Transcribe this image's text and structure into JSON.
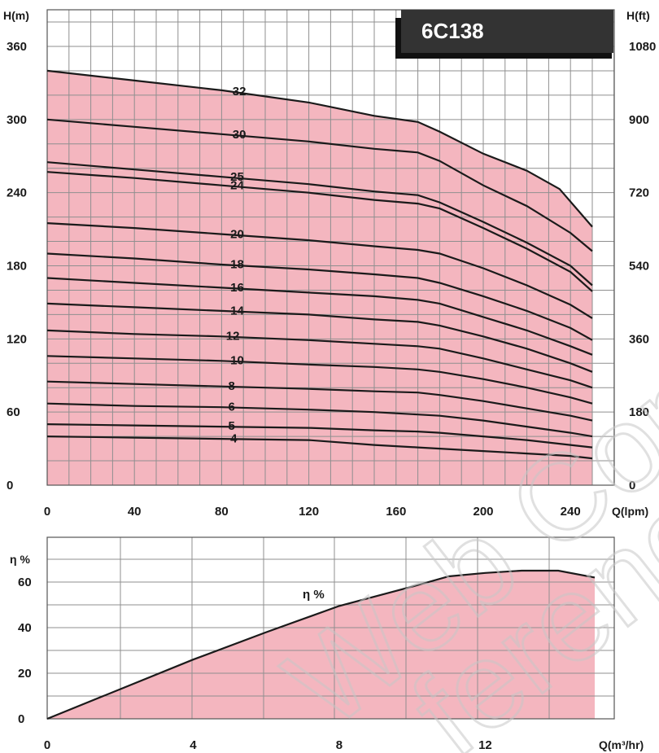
{
  "model": "6C138",
  "watermark": [
    "Web Copy",
    "ference"
  ],
  "colors": {
    "fill": "#f4b6bf",
    "grid": "#8f8f8f",
    "curve": "#1a1a1a",
    "title_bg": "#333333"
  },
  "chart_data": [
    {
      "type": "line",
      "title": "6C138",
      "xlabel": "Q(lpm)",
      "ylabel": "H(m)",
      "ylabel_right": "H(ft)",
      "xlim": [
        0,
        250
      ],
      "ylim": [
        0,
        370
      ],
      "x_ticks": [
        "0",
        "40",
        "80",
        "120",
        "160",
        "200",
        "240"
      ],
      "y_ticks": [
        "0",
        "60",
        "120",
        "180",
        "240",
        "300",
        "360"
      ],
      "y_ticks_right": [
        "0",
        "180",
        "360",
        "540",
        "720",
        "900",
        "1080"
      ],
      "grid": true,
      "series": [
        {
          "name": "32",
          "label_at": 85,
          "points": [
            [
              0,
              340
            ],
            [
              40,
              332
            ],
            [
              80,
              324
            ],
            [
              120,
              314
            ],
            [
              150,
              303
            ],
            [
              170,
              298
            ],
            [
              180,
              290
            ],
            [
              200,
              272
            ],
            [
              220,
              258
            ],
            [
              235,
              243
            ],
            [
              250,
              212
            ]
          ]
        },
        {
          "name": "30",
          "label_at": 85,
          "points": [
            [
              0,
              300
            ],
            [
              40,
              294
            ],
            [
              80,
              288
            ],
            [
              120,
              282
            ],
            [
              150,
              276
            ],
            [
              170,
              273
            ],
            [
              180,
              266
            ],
            [
              200,
              246
            ],
            [
              220,
              229
            ],
            [
              240,
              207
            ],
            [
              250,
              192
            ]
          ]
        },
        {
          "name": "25",
          "label_at": 84,
          "points": [
            [
              0,
              265
            ],
            [
              40,
              259
            ],
            [
              80,
              253
            ],
            [
              120,
              247
            ],
            [
              150,
              241
            ],
            [
              170,
              238
            ],
            [
              180,
              232
            ],
            [
              200,
              216
            ],
            [
              220,
              199
            ],
            [
              240,
              180
            ],
            [
              250,
              164
            ]
          ]
        },
        {
          "name": "24",
          "label_at": 84,
          "points": [
            [
              0,
              257
            ],
            [
              40,
              252
            ],
            [
              80,
              246
            ],
            [
              120,
              240
            ],
            [
              150,
              234
            ],
            [
              170,
              231
            ],
            [
              180,
              227
            ],
            [
              200,
              211
            ],
            [
              220,
              194
            ],
            [
              240,
              175
            ],
            [
              250,
              159
            ]
          ]
        },
        {
          "name": "20",
          "label_at": 84,
          "points": [
            [
              0,
              215
            ],
            [
              40,
              211
            ],
            [
              80,
              206
            ],
            [
              120,
              201
            ],
            [
              150,
              196
            ],
            [
              170,
              193
            ],
            [
              180,
              190
            ],
            [
              200,
              178
            ],
            [
              220,
              164
            ],
            [
              240,
              148
            ],
            [
              250,
              137
            ]
          ]
        },
        {
          "name": "18",
          "label_at": 84,
          "points": [
            [
              0,
              190
            ],
            [
              40,
              186
            ],
            [
              80,
              181
            ],
            [
              120,
              177
            ],
            [
              150,
              173
            ],
            [
              170,
              170
            ],
            [
              180,
              166
            ],
            [
              200,
              155
            ],
            [
              220,
              143
            ],
            [
              240,
              129
            ],
            [
              250,
              119
            ]
          ]
        },
        {
          "name": "16",
          "label_at": 84,
          "points": [
            [
              0,
              170
            ],
            [
              40,
              166
            ],
            [
              80,
              162
            ],
            [
              120,
              158
            ],
            [
              150,
              155
            ],
            [
              170,
              152
            ],
            [
              180,
              149
            ],
            [
              200,
              138
            ],
            [
              220,
              127
            ],
            [
              240,
              114
            ],
            [
              250,
              107
            ]
          ]
        },
        {
          "name": "14",
          "label_at": 84,
          "points": [
            [
              0,
              149
            ],
            [
              40,
              146
            ],
            [
              80,
              143
            ],
            [
              120,
              140
            ],
            [
              150,
              136
            ],
            [
              170,
              134
            ],
            [
              180,
              131
            ],
            [
              200,
              122
            ],
            [
              220,
              112
            ],
            [
              240,
              100
            ],
            [
              250,
              93
            ]
          ]
        },
        {
          "name": "12",
          "label_at": 82,
          "points": [
            [
              0,
              127
            ],
            [
              40,
              124
            ],
            [
              80,
              122
            ],
            [
              120,
              119
            ],
            [
              150,
              116
            ],
            [
              170,
              114
            ],
            [
              180,
              112
            ],
            [
              200,
              104
            ],
            [
              220,
              95
            ],
            [
              240,
              86
            ],
            [
              250,
              80
            ]
          ]
        },
        {
          "name": "10",
          "label_at": 84,
          "points": [
            [
              0,
              106
            ],
            [
              40,
              104
            ],
            [
              80,
              102
            ],
            [
              120,
              99
            ],
            [
              150,
              97
            ],
            [
              170,
              95
            ],
            [
              180,
              93
            ],
            [
              200,
              87
            ],
            [
              220,
              80
            ],
            [
              240,
              72
            ],
            [
              250,
              67
            ]
          ]
        },
        {
          "name": "8",
          "label_at": 83,
          "points": [
            [
              0,
              85
            ],
            [
              40,
              83
            ],
            [
              80,
              81
            ],
            [
              120,
              79
            ],
            [
              150,
              77
            ],
            [
              170,
              76
            ],
            [
              180,
              74
            ],
            [
              200,
              69
            ],
            [
              220,
              63
            ],
            [
              240,
              57
            ],
            [
              250,
              53
            ]
          ]
        },
        {
          "name": "6",
          "label_at": 83,
          "points": [
            [
              0,
              67
            ],
            [
              40,
              65
            ],
            [
              80,
              64
            ],
            [
              120,
              62
            ],
            [
              150,
              60
            ],
            [
              170,
              58
            ],
            [
              180,
              57
            ],
            [
              200,
              53
            ],
            [
              220,
              48
            ],
            [
              240,
              43
            ],
            [
              250,
              40
            ]
          ]
        },
        {
          "name": "5",
          "label_at": 83,
          "points": [
            [
              0,
              50
            ],
            [
              40,
              49
            ],
            [
              80,
              48
            ],
            [
              120,
              47
            ],
            [
              150,
              45
            ],
            [
              170,
              44
            ],
            [
              180,
              43
            ],
            [
              200,
              40
            ],
            [
              220,
              37
            ],
            [
              240,
              33
            ],
            [
              250,
              31
            ]
          ]
        },
        {
          "name": "4",
          "label_at": 84,
          "points": [
            [
              0,
              40
            ],
            [
              40,
              39
            ],
            [
              80,
              38
            ],
            [
              120,
              37
            ],
            [
              150,
              33
            ],
            [
              170,
              31
            ],
            [
              180,
              30
            ],
            [
              200,
              28
            ],
            [
              220,
              26
            ],
            [
              240,
              24
            ],
            [
              250,
              22
            ]
          ]
        }
      ]
    },
    {
      "type": "area",
      "xlabel": "Q(m³/hr)",
      "ylabel": "η %",
      "series_label": "η %",
      "xlim": [
        0,
        15.2
      ],
      "ylim": [
        0,
        70
      ],
      "x_ticks": [
        "0",
        "4",
        "8",
        "12"
      ],
      "y_ticks": [
        "0",
        "20",
        "40",
        "60"
      ],
      "grid": true,
      "points": [
        [
          0,
          0
        ],
        [
          2,
          13
        ],
        [
          4,
          26
        ],
        [
          6,
          38
        ],
        [
          8,
          49.5
        ],
        [
          10,
          58
        ],
        [
          11,
          62.5
        ],
        [
          12,
          64
        ],
        [
          13,
          65
        ],
        [
          14,
          65
        ],
        [
          15,
          62
        ]
      ]
    }
  ]
}
